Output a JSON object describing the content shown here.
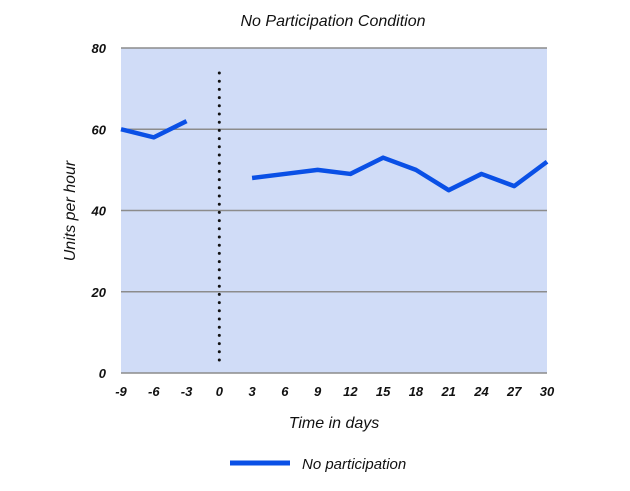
{
  "chart_data": {
    "type": "line",
    "title": "No Participation Condition",
    "xlabel": "Time in days",
    "ylabel": "Units per hour",
    "xlim": [
      -9,
      30
    ],
    "ylim": [
      0,
      80
    ],
    "x_ticks": [
      -9,
      -6,
      -3,
      0,
      3,
      6,
      9,
      12,
      15,
      18,
      21,
      24,
      27,
      30
    ],
    "y_ticks": [
      0,
      20,
      40,
      60,
      80
    ],
    "grid": true,
    "legend_position": "bottom",
    "phase_change_line_x": 0,
    "series": [
      {
        "name": "No participation",
        "color": "#0a50e6",
        "segments": [
          {
            "x": [
              -9,
              -6,
              -3
            ],
            "y": [
              60,
              58,
              62
            ]
          },
          {
            "x": [
              3,
              6,
              9,
              12,
              15,
              18,
              21,
              24,
              27,
              30
            ],
            "y": [
              48,
              49,
              50,
              49,
              53,
              50,
              45,
              49,
              46,
              52
            ]
          }
        ]
      }
    ],
    "colors": {
      "plot_background": "#d0dcf7",
      "gridline": "#8c8c8c",
      "phase_line": "#111111"
    }
  }
}
